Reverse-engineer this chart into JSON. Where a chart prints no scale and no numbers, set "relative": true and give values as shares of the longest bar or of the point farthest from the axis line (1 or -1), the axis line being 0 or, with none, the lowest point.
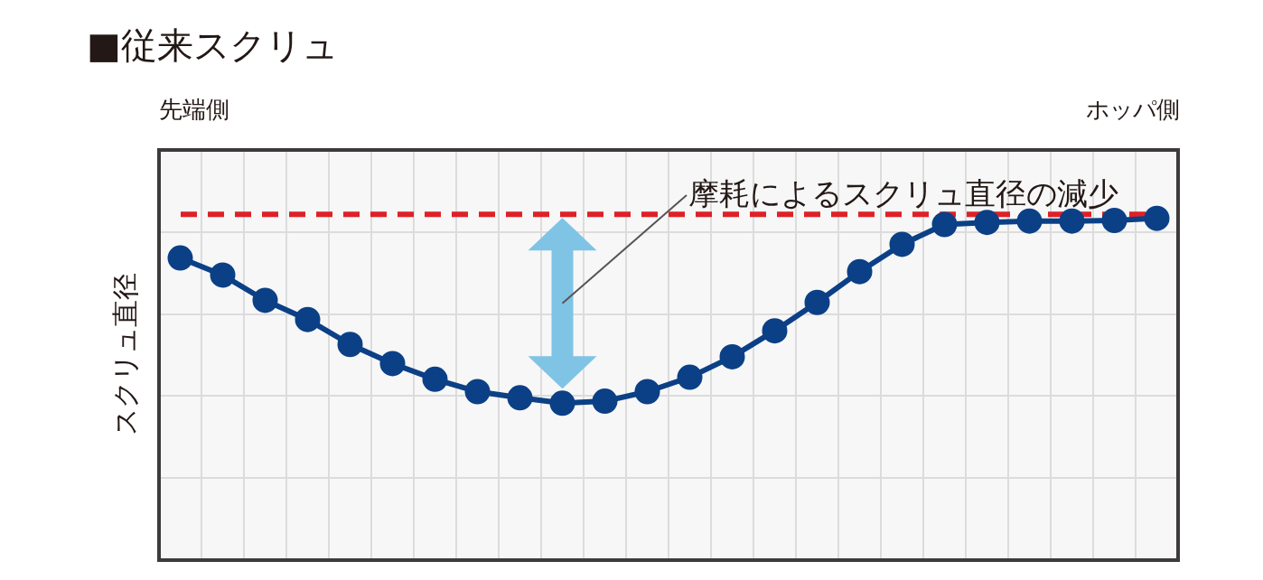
{
  "chart_data": {
    "type": "line",
    "title": "■従来スクリュ",
    "ylabel": "スクリュ直径",
    "annotations": [
      "先端側",
      "ホッパ側",
      "摩耗によるスクリュ直径の減少"
    ],
    "categories": [
      null,
      null,
      null,
      null,
      null,
      null,
      null,
      null,
      null,
      null,
      null,
      null,
      null,
      null,
      null,
      null,
      null,
      null,
      null,
      null,
      null,
      null,
      null,
      null
    ],
    "series": [
      {
        "color": "#0b4086",
        "values": [
          0.884,
          0.834,
          0.76,
          0.704,
          0.631,
          0.575,
          0.529,
          0.493,
          0.475,
          0.459,
          0.465,
          0.493,
          0.535,
          0.595,
          0.671,
          0.754,
          0.844,
          0.924,
          0.982,
          0.988,
          0.992,
          0.992,
          0.994,
          1
        ]
      }
    ],
    "ref_lines": [
      {
        "axis": "y",
        "value": 1.012,
        "color": "#e02027",
        "line_style": "dashed"
      }
    ],
    "relative": true,
    "grid": true,
    "marker": "circle",
    "line_style": "solid",
    "legend": false
  }
}
